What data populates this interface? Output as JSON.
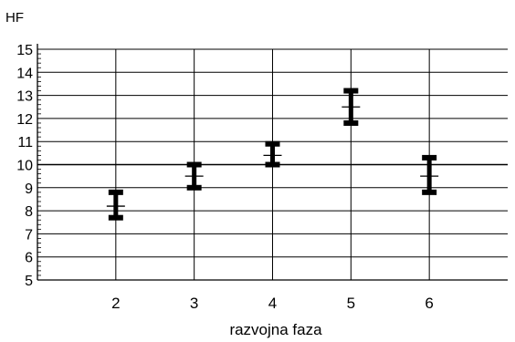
{
  "chart_data": {
    "type": "scatter",
    "ylabel": "HF",
    "xlabel": "razvojna faza",
    "categories": [
      "2",
      "3",
      "4",
      "5",
      "6"
    ],
    "x_ticks": [
      2,
      3,
      4,
      5,
      6
    ],
    "y_ticks": [
      5,
      6,
      7,
      8,
      9,
      10,
      11,
      12,
      13,
      14,
      15
    ],
    "xlim": [
      1,
      7
    ],
    "ylim": [
      5,
      15
    ],
    "grid": true,
    "series": [
      {
        "points": [
          {
            "x": 2,
            "mean": 8.2,
            "low": 7.7,
            "high": 8.8
          },
          {
            "x": 3,
            "mean": 9.5,
            "low": 9.0,
            "high": 10.0
          },
          {
            "x": 4,
            "mean": 10.4,
            "low": 10.0,
            "high": 10.9
          },
          {
            "x": 5,
            "mean": 12.5,
            "low": 11.8,
            "high": 13.2
          },
          {
            "x": 6,
            "mean": 9.5,
            "low": 8.8,
            "high": 10.3
          }
        ]
      }
    ]
  }
}
